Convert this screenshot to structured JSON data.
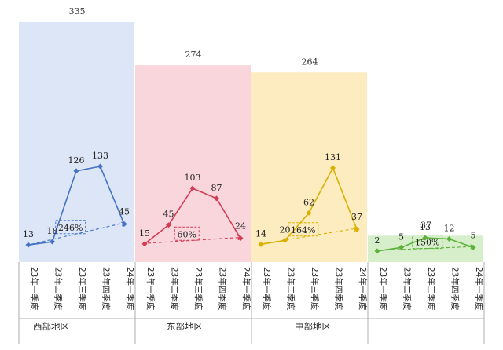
{
  "chart_data": {
    "type": "line",
    "x_labels": [
      "23年一季度",
      "23年二季度",
      "23年三季度",
      "23年四季度",
      "24年一季度"
    ],
    "y_scale": "per-panel",
    "panels": [
      {
        "region": "西部地区",
        "total": 335,
        "values": [
          13,
          18,
          126,
          133,
          45
        ],
        "growth": "246%",
        "color": "#4472c4",
        "bg": "#dde6f6",
        "bg_level": 1.0,
        "label_dx": [
          0,
          0,
          0,
          0,
          0
        ]
      },
      {
        "region": "东部地区",
        "total": 274,
        "values": [
          15,
          45,
          103,
          87,
          24
        ],
        "growth": "60%",
        "color": "#d23c55",
        "bg": "#f8d6dc",
        "bg_level": 0.82,
        "label_dx": [
          0,
          0,
          0,
          0,
          0
        ]
      },
      {
        "region": "中部地区",
        "total": 264,
        "values": [
          14,
          20,
          62,
          131,
          37
        ],
        "growth": "164%",
        "color": "#d9b000",
        "bg": "#fcecbf",
        "bg_level": 0.79,
        "label_dx": [
          0,
          0,
          0,
          0,
          0
        ]
      },
      {
        "region": "",
        "total": 37,
        "values": [
          2,
          5,
          13,
          12,
          5
        ],
        "growth": "150%",
        "color": "#5cb13a",
        "bg": "#d6efca",
        "bg_level": 0.11,
        "label_dx": [
          0,
          0,
          0,
          0,
          0
        ]
      }
    ]
  }
}
